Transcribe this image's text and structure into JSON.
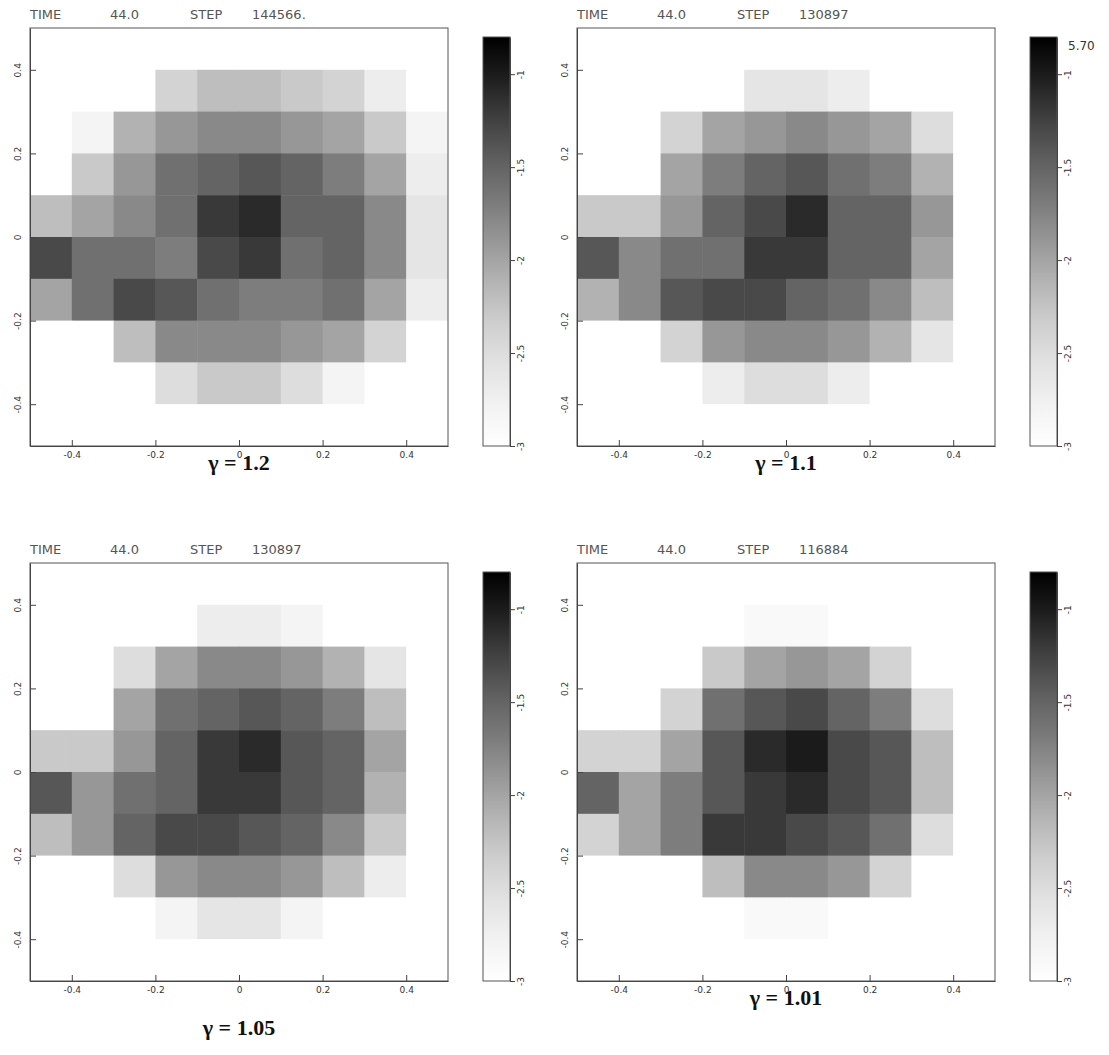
{
  "chart_data": [
    {
      "type": "heatmap",
      "title": "γ = 1.2",
      "time_label": "TIME",
      "time": "44.0",
      "step_label": "STEP",
      "step": "144566.",
      "xlim": [
        -0.5,
        0.5
      ],
      "ylim": [
        -0.5,
        0.5
      ],
      "xticks": [
        -0.4,
        -0.2,
        0,
        0.2,
        0.4
      ],
      "yticks": [
        -0.4,
        -0.2,
        0,
        0.2,
        0.4
      ],
      "x": [
        -0.45,
        -0.35,
        -0.25,
        -0.15,
        -0.05,
        0.05,
        0.15,
        0.25,
        0.35,
        0.45
      ],
      "y": [
        0.45,
        0.35,
        0.25,
        0.15,
        0.05,
        -0.05,
        -0.15,
        -0.25,
        -0.35,
        -0.45
      ],
      "z": [
        [
          -3,
          -3,
          -3,
          -3,
          -3,
          -3,
          -3,
          -3,
          -3,
          -3
        ],
        [
          -3,
          -3,
          -3,
          -2.4,
          -2.2,
          -2.2,
          -2.3,
          -2.4,
          -2.7,
          -3
        ],
        [
          -3,
          -2.8,
          -2.1,
          -1.9,
          -1.8,
          -1.8,
          -1.9,
          -2.0,
          -2.3,
          -2.8
        ],
        [
          -3,
          -2.3,
          -1.9,
          -1.6,
          -1.5,
          -1.4,
          -1.5,
          -1.7,
          -2.0,
          -2.7
        ],
        [
          -2.2,
          -2.0,
          -1.8,
          -1.6,
          -1.2,
          -1.1,
          -1.5,
          -1.5,
          -1.8,
          -2.6
        ],
        [
          -1.3,
          -1.6,
          -1.6,
          -1.7,
          -1.3,
          -1.2,
          -1.6,
          -1.5,
          -1.8,
          -2.6
        ],
        [
          -2.0,
          -1.6,
          -1.3,
          -1.4,
          -1.6,
          -1.7,
          -1.7,
          -1.6,
          -2.0,
          -2.7
        ],
        [
          -3,
          -3,
          -2.2,
          -1.8,
          -1.8,
          -1.8,
          -1.9,
          -2.0,
          -2.4,
          -3
        ],
        [
          -3,
          -3,
          -3,
          -2.5,
          -2.3,
          -2.3,
          -2.5,
          -2.8,
          -3,
          -3
        ],
        [
          -3,
          -3,
          -3,
          -3,
          -3,
          -3,
          -3,
          -3,
          -3,
          -3
        ]
      ],
      "colorbar_range": [
        -3,
        -0.8
      ],
      "colorbar_ticks": [
        -1,
        -1.5,
        -2,
        -2.5,
        -3
      ]
    },
    {
      "type": "heatmap",
      "title": "γ = 1.1",
      "time_label": "TIME",
      "time": "44.0",
      "step_label": "STEP",
      "step": "130897",
      "xlim": [
        -0.5,
        0.5
      ],
      "ylim": [
        -0.5,
        0.5
      ],
      "xticks": [
        -0.4,
        -0.2,
        0,
        0.2,
        0.4
      ],
      "yticks": [
        -0.4,
        -0.2,
        0,
        0.2,
        0.4
      ],
      "x": [
        -0.45,
        -0.35,
        -0.25,
        -0.15,
        -0.05,
        0.05,
        0.15,
        0.25,
        0.35,
        0.45
      ],
      "y": [
        0.45,
        0.35,
        0.25,
        0.15,
        0.05,
        -0.05,
        -0.15,
        -0.25,
        -0.35,
        -0.45
      ],
      "z": [
        [
          -3,
          -3,
          -3,
          -3,
          -3,
          -3,
          -3,
          -3,
          -3,
          -3
        ],
        [
          -3,
          -3,
          -3,
          -3,
          -2.6,
          -2.6,
          -2.7,
          -3,
          -3,
          -3
        ],
        [
          -3,
          -3,
          -2.4,
          -2.0,
          -1.9,
          -1.8,
          -1.9,
          -2.0,
          -2.5,
          -3
        ],
        [
          -3,
          -3,
          -2.0,
          -1.7,
          -1.5,
          -1.4,
          -1.6,
          -1.7,
          -2.1,
          -3
        ],
        [
          -2.3,
          -2.3,
          -1.9,
          -1.5,
          -1.3,
          -1.1,
          -1.5,
          -1.5,
          -1.9,
          -3
        ],
        [
          -1.4,
          -1.8,
          -1.6,
          -1.6,
          -1.2,
          -1.2,
          -1.5,
          -1.5,
          -2.0,
          -3
        ],
        [
          -2.1,
          -1.8,
          -1.4,
          -1.3,
          -1.3,
          -1.5,
          -1.6,
          -1.8,
          -2.2,
          -3
        ],
        [
          -3,
          -3,
          -2.4,
          -1.9,
          -1.8,
          -1.8,
          -1.9,
          -2.1,
          -2.6,
          -3
        ],
        [
          -3,
          -3,
          -3,
          -2.7,
          -2.5,
          -2.5,
          -2.7,
          -3,
          -3,
          -3
        ],
        [
          -3,
          -3,
          -3,
          -3,
          -3,
          -3,
          -3,
          -3,
          -3,
          -3
        ]
      ],
      "colorbar_range": [
        -3,
        -0.8
      ],
      "colorbar_ticks": [
        -1,
        -1.5,
        -2,
        -2.5,
        -3
      ]
    },
    {
      "type": "heatmap",
      "title": "γ = 1.05",
      "time_label": "TIME",
      "time": "44.0",
      "step_label": "STEP",
      "step": "130897",
      "xlim": [
        -0.5,
        0.5
      ],
      "ylim": [
        -0.5,
        0.5
      ],
      "xticks": [
        -0.4,
        -0.2,
        0,
        0.2,
        0.4
      ],
      "yticks": [
        -0.4,
        -0.2,
        0,
        0.2,
        0.4
      ],
      "x": [
        -0.45,
        -0.35,
        -0.25,
        -0.15,
        -0.05,
        0.05,
        0.15,
        0.25,
        0.35,
        0.45
      ],
      "y": [
        0.45,
        0.35,
        0.25,
        0.15,
        0.05,
        -0.05,
        -0.15,
        -0.25,
        -0.35,
        -0.45
      ],
      "z": [
        [
          -3,
          -3,
          -3,
          -3,
          -3,
          -3,
          -3,
          -3,
          -3,
          -3
        ],
        [
          -3,
          -3,
          -3,
          -3,
          -2.7,
          -2.7,
          -2.8,
          -3,
          -3,
          -3
        ],
        [
          -3,
          -3,
          -2.5,
          -2.0,
          -1.8,
          -1.8,
          -1.9,
          -2.1,
          -2.6,
          -3
        ],
        [
          -3,
          -3,
          -2.0,
          -1.6,
          -1.5,
          -1.4,
          -1.5,
          -1.7,
          -2.2,
          -3
        ],
        [
          -2.3,
          -2.3,
          -1.9,
          -1.5,
          -1.2,
          -1.1,
          -1.4,
          -1.5,
          -2.0,
          -3
        ],
        [
          -1.4,
          -1.9,
          -1.6,
          -1.5,
          -1.2,
          -1.2,
          -1.4,
          -1.5,
          -2.1,
          -3
        ],
        [
          -2.2,
          -1.9,
          -1.5,
          -1.3,
          -1.3,
          -1.4,
          -1.5,
          -1.8,
          -2.3,
          -3
        ],
        [
          -3,
          -3,
          -2.5,
          -1.9,
          -1.8,
          -1.8,
          -1.9,
          -2.2,
          -2.7,
          -3
        ],
        [
          -3,
          -3,
          -3,
          -2.8,
          -2.6,
          -2.6,
          -2.8,
          -3,
          -3,
          -3
        ],
        [
          -3,
          -3,
          -3,
          -3,
          -3,
          -3,
          -3,
          -3,
          -3,
          -3
        ]
      ],
      "colorbar_range": [
        -3,
        -0.8
      ],
      "colorbar_ticks": [
        -1,
        -1.5,
        -2,
        -2.5,
        -3
      ]
    },
    {
      "type": "heatmap",
      "title": "γ = 1.01",
      "time_label": "TIME",
      "time": "44.0",
      "step_label": "STEP",
      "step": "116884",
      "xlim": [
        -0.5,
        0.5
      ],
      "ylim": [
        -0.5,
        0.5
      ],
      "xticks": [
        -0.4,
        -0.2,
        0,
        0.2,
        0.4
      ],
      "yticks": [
        -0.4,
        -0.2,
        0,
        0.2,
        0.4
      ],
      "x": [
        -0.45,
        -0.35,
        -0.25,
        -0.15,
        -0.05,
        0.05,
        0.15,
        0.25,
        0.35,
        0.45
      ],
      "y": [
        0.45,
        0.35,
        0.25,
        0.15,
        0.05,
        -0.05,
        -0.15,
        -0.25,
        -0.35,
        -0.45
      ],
      "z": [
        [
          -3,
          -3,
          -3,
          -3,
          -3,
          -3,
          -3,
          -3,
          -3,
          -3
        ],
        [
          -3,
          -3,
          -3,
          -3,
          -2.9,
          -2.9,
          -3,
          -3,
          -3,
          -3
        ],
        [
          -3,
          -3,
          -3,
          -2.3,
          -2.0,
          -1.9,
          -2.0,
          -2.4,
          -3,
          -3
        ],
        [
          -3,
          -3,
          -2.4,
          -1.6,
          -1.4,
          -1.3,
          -1.5,
          -1.7,
          -2.5,
          -3
        ],
        [
          -2.4,
          -2.4,
          -2.0,
          -1.4,
          -1.1,
          -1.0,
          -1.3,
          -1.4,
          -2.2,
          -3
        ],
        [
          -1.5,
          -2.0,
          -1.7,
          -1.4,
          -1.2,
          -1.1,
          -1.3,
          -1.4,
          -2.2,
          -3
        ],
        [
          -2.4,
          -2.0,
          -1.7,
          -1.2,
          -1.2,
          -1.3,
          -1.4,
          -1.6,
          -2.5,
          -3
        ],
        [
          -3,
          -3,
          -3,
          -2.2,
          -1.8,
          -1.8,
          -1.9,
          -2.4,
          -3,
          -3
        ],
        [
          -3,
          -3,
          -3,
          -3,
          -2.9,
          -2.9,
          -3,
          -3,
          -3,
          -3
        ],
        [
          -3,
          -3,
          -3,
          -3,
          -3,
          -3,
          -3,
          -3,
          -3,
          -3
        ]
      ],
      "colorbar_range": [
        -3,
        -0.8
      ],
      "colorbar_ticks": [
        -1,
        -1.5,
        -2,
        -2.5,
        -3
      ]
    }
  ],
  "page_note": "5.70"
}
